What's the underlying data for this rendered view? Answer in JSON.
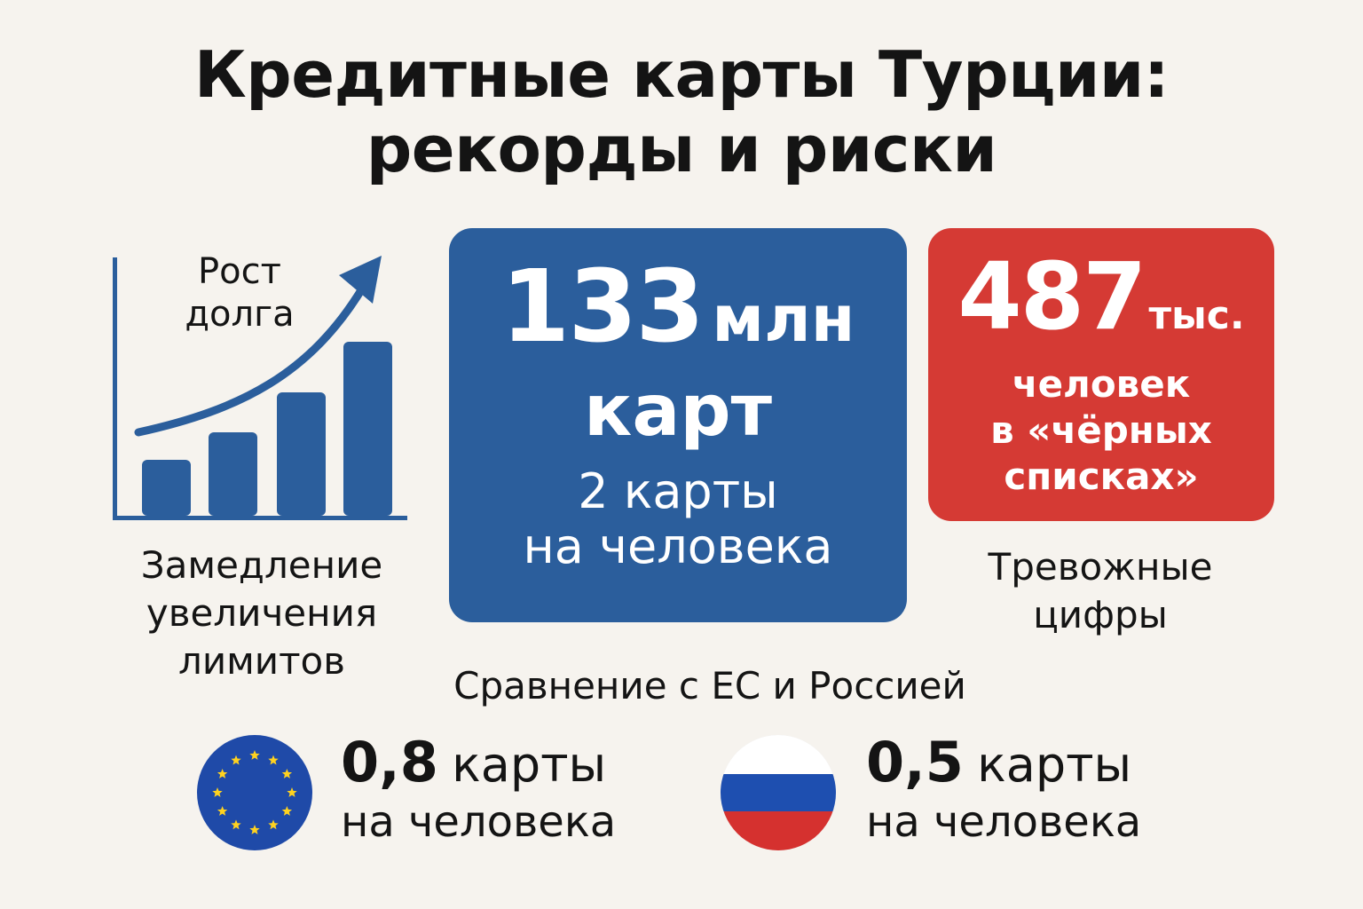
{
  "title": {
    "line1": "Кредитные карты Турции:",
    "line2": "рекорды и риски"
  },
  "chart_block": {
    "label_line1": "Рост",
    "label_line2": "долга",
    "icon": "rising-bar-chart-with-arrow-icon",
    "color": "#2b5e9c"
  },
  "left_caption": {
    "line1": "Замедление",
    "line2": "увеличения",
    "line3": "лимитов"
  },
  "blue_box": {
    "number": "133",
    "unit": "млн",
    "noun": "карт",
    "sub_line1": "2 карты",
    "sub_line2": "на человека",
    "color": "#2b5e9c"
  },
  "red_box": {
    "number": "487",
    "unit": "тыс.",
    "line1": "человек",
    "line2": "в «чёрных",
    "line3": "списках»",
    "color": "#d53a34"
  },
  "right_caption": {
    "line1": "Тревожные",
    "line2": "цифры"
  },
  "comparison": {
    "heading": "Сравнение с ЕС и Россией",
    "eu": {
      "icon": "eu-flag-icon",
      "value": "0,8",
      "unit": "карты",
      "per": "на человека"
    },
    "russia": {
      "icon": "russia-flag-icon",
      "value": "0,5",
      "unit": "карты",
      "per": "на человека"
    }
  }
}
